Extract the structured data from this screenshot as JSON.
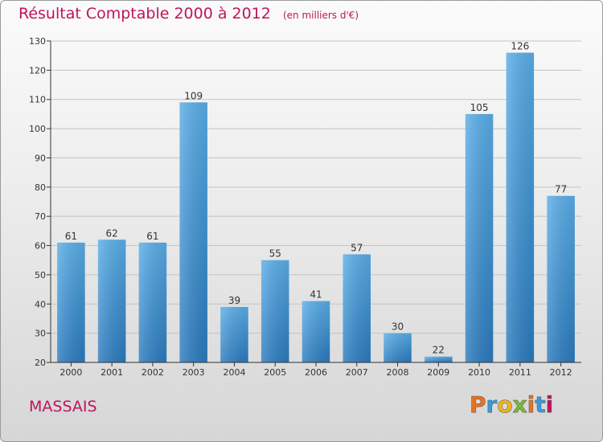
{
  "header": {
    "title": "Résultat Comptable 2000 à 2012",
    "subtitle": "(en milliers d'€)"
  },
  "footer": {
    "commune": "MASSAIS",
    "logo_text": "Proxiti",
    "logo_colors": [
      "#e8711f",
      "#3a9ad9",
      "#f0b419",
      "#7ab83a",
      "#e8711f",
      "#3a9ad9",
      "#c0145a"
    ]
  },
  "colors": {
    "title": "#c0145a",
    "bar_top": "#5aaee8",
    "bar_bottom": "#2b7bbf",
    "axis": "#333333"
  },
  "chart_data": {
    "type": "bar",
    "title": "Résultat Comptable 2000 à 2012",
    "subtitle": "(en milliers d'€)",
    "categories": [
      "2000",
      "2001",
      "2002",
      "2003",
      "2004",
      "2005",
      "2006",
      "2007",
      "2008",
      "2009",
      "2010",
      "2011",
      "2012"
    ],
    "values": [
      61,
      62,
      61,
      109,
      39,
      55,
      41,
      57,
      30,
      22,
      105,
      126,
      77
    ],
    "ylim": [
      20,
      130
    ],
    "yticks": [
      20,
      30,
      40,
      50,
      60,
      70,
      80,
      90,
      100,
      110,
      120,
      130
    ],
    "grid": true,
    "legend": "none"
  }
}
